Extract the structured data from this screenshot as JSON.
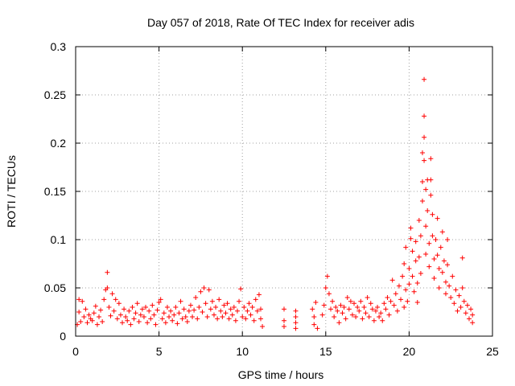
{
  "chart_data": {
    "type": "scatter",
    "title": "Day 057 of 2018, Rate Of TEC Index for receiver adis",
    "xlabel": "GPS time / hours",
    "ylabel": "ROTI / TECUs",
    "xlim": [
      0,
      25
    ],
    "ylim": [
      0,
      0.3
    ],
    "xticks": [
      0,
      5,
      10,
      15,
      20,
      25
    ],
    "xtick_labels": [
      "0",
      "5",
      "10",
      "15",
      "20",
      "25"
    ],
    "yticks": [
      0,
      0.05,
      0.1,
      0.15,
      0.2,
      0.25,
      0.3
    ],
    "ytick_labels": [
      "0",
      "0.05",
      "0.1",
      "0.15",
      "0.2",
      "0.25",
      "0.3"
    ],
    "grid": true,
    "marker": "+",
    "color": "#ff0000",
    "series": [
      {
        "name": "ROTI",
        "points": [
          [
            0.1,
            0.012
          ],
          [
            0.2,
            0.025
          ],
          [
            0.2,
            0.038
          ],
          [
            0.3,
            0.015
          ],
          [
            0.4,
            0.036
          ],
          [
            0.5,
            0.02
          ],
          [
            0.6,
            0.028
          ],
          [
            0.7,
            0.014
          ],
          [
            0.8,
            0.022
          ],
          [
            0.9,
            0.018
          ],
          [
            1.0,
            0.016
          ],
          [
            1.1,
            0.024
          ],
          [
            1.2,
            0.031
          ],
          [
            1.3,
            0.012
          ],
          [
            1.4,
            0.02
          ],
          [
            1.5,
            0.027
          ],
          [
            1.6,
            0.015
          ],
          [
            1.7,
            0.038
          ],
          [
            1.8,
            0.048
          ],
          [
            1.9,
            0.066
          ],
          [
            1.9,
            0.05
          ],
          [
            2.0,
            0.03
          ],
          [
            2.1,
            0.021
          ],
          [
            2.2,
            0.044
          ],
          [
            2.3,
            0.026
          ],
          [
            2.4,
            0.038
          ],
          [
            2.5,
            0.018
          ],
          [
            2.6,
            0.034
          ],
          [
            2.7,
            0.022
          ],
          [
            2.8,
            0.014
          ],
          [
            2.9,
            0.028
          ],
          [
            3.0,
            0.02
          ],
          [
            3.1,
            0.016
          ],
          [
            3.2,
            0.026
          ],
          [
            3.3,
            0.012
          ],
          [
            3.4,
            0.03
          ],
          [
            3.5,
            0.018
          ],
          [
            3.6,
            0.024
          ],
          [
            3.7,
            0.034
          ],
          [
            3.8,
            0.015
          ],
          [
            3.9,
            0.022
          ],
          [
            4.0,
            0.028
          ],
          [
            4.1,
            0.02
          ],
          [
            4.2,
            0.03
          ],
          [
            4.3,
            0.014
          ],
          [
            4.4,
            0.026
          ],
          [
            4.5,
            0.018
          ],
          [
            4.6,
            0.032
          ],
          [
            4.7,
            0.022
          ],
          [
            4.8,
            0.012
          ],
          [
            4.9,
            0.027
          ],
          [
            5.0,
            0.035
          ],
          [
            5.1,
            0.038
          ],
          [
            5.2,
            0.018
          ],
          [
            5.3,
            0.024
          ],
          [
            5.4,
            0.014
          ],
          [
            5.5,
            0.03
          ],
          [
            5.6,
            0.02
          ],
          [
            5.7,
            0.026
          ],
          [
            5.8,
            0.016
          ],
          [
            5.9,
            0.022
          ],
          [
            6.0,
            0.03
          ],
          [
            6.1,
            0.013
          ],
          [
            6.2,
            0.024
          ],
          [
            6.3,
            0.036
          ],
          [
            6.4,
            0.018
          ],
          [
            6.5,
            0.028
          ],
          [
            6.6,
            0.02
          ],
          [
            6.7,
            0.015
          ],
          [
            6.8,
            0.026
          ],
          [
            6.9,
            0.032
          ],
          [
            7.0,
            0.02
          ],
          [
            7.1,
            0.027
          ],
          [
            7.2,
            0.04
          ],
          [
            7.3,
            0.018
          ],
          [
            7.4,
            0.03
          ],
          [
            7.5,
            0.046
          ],
          [
            7.6,
            0.025
          ],
          [
            7.7,
            0.05
          ],
          [
            7.8,
            0.034
          ],
          [
            7.9,
            0.02
          ],
          [
            8.0,
            0.048
          ],
          [
            8.1,
            0.028
          ],
          [
            8.2,
            0.036
          ],
          [
            8.3,
            0.022
          ],
          [
            8.4,
            0.03
          ],
          [
            8.5,
            0.018
          ],
          [
            8.6,
            0.038
          ],
          [
            8.7,
            0.026
          ],
          [
            8.8,
            0.02
          ],
          [
            8.9,
            0.032
          ],
          [
            9.0,
            0.024
          ],
          [
            9.1,
            0.034
          ],
          [
            9.2,
            0.018
          ],
          [
            9.3,
            0.028
          ],
          [
            9.4,
            0.022
          ],
          [
            9.5,
            0.03
          ],
          [
            9.6,
            0.016
          ],
          [
            9.7,
            0.026
          ],
          [
            9.8,
            0.036
          ],
          [
            9.9,
            0.049
          ],
          [
            10.0,
            0.02
          ],
          [
            10.1,
            0.03
          ],
          [
            10.2,
            0.018
          ],
          [
            10.3,
            0.026
          ],
          [
            10.4,
            0.034
          ],
          [
            10.5,
            0.022
          ],
          [
            10.6,
            0.03
          ],
          [
            10.7,
            0.016
          ],
          [
            10.8,
            0.038
          ],
          [
            10.9,
            0.026
          ],
          [
            11.0,
            0.043
          ],
          [
            11.1,
            0.018
          ],
          [
            11.1,
            0.028
          ],
          [
            11.2,
            0.01
          ],
          [
            12.5,
            0.028
          ],
          [
            12.5,
            0.016
          ],
          [
            12.5,
            0.01
          ],
          [
            13.2,
            0.026
          ],
          [
            13.2,
            0.02
          ],
          [
            13.2,
            0.014
          ],
          [
            13.2,
            0.008
          ],
          [
            14.2,
            0.028
          ],
          [
            14.3,
            0.02
          ],
          [
            14.3,
            0.012
          ],
          [
            14.4,
            0.035
          ],
          [
            14.5,
            0.008
          ],
          [
            14.8,
            0.022
          ],
          [
            14.9,
            0.032
          ],
          [
            15.0,
            0.05
          ],
          [
            15.1,
            0.062
          ],
          [
            15.2,
            0.044
          ],
          [
            15.3,
            0.028
          ],
          [
            15.4,
            0.036
          ],
          [
            15.5,
            0.02
          ],
          [
            15.6,
            0.03
          ],
          [
            15.7,
            0.026
          ],
          [
            15.8,
            0.014
          ],
          [
            15.9,
            0.032
          ],
          [
            16.0,
            0.024
          ],
          [
            16.1,
            0.03
          ],
          [
            16.2,
            0.018
          ],
          [
            16.3,
            0.04
          ],
          [
            16.4,
            0.028
          ],
          [
            16.5,
            0.036
          ],
          [
            16.6,
            0.022
          ],
          [
            16.7,
            0.034
          ],
          [
            16.8,
            0.02
          ],
          [
            16.9,
            0.03
          ],
          [
            17.0,
            0.026
          ],
          [
            17.1,
            0.036
          ],
          [
            17.2,
            0.018
          ],
          [
            17.3,
            0.03
          ],
          [
            17.4,
            0.024
          ],
          [
            17.5,
            0.04
          ],
          [
            17.6,
            0.02
          ],
          [
            17.7,
            0.034
          ],
          [
            17.8,
            0.028
          ],
          [
            17.9,
            0.016
          ],
          [
            18.0,
            0.026
          ],
          [
            18.1,
            0.03
          ],
          [
            18.2,
            0.02
          ],
          [
            18.3,
            0.024
          ],
          [
            18.4,
            0.016
          ],
          [
            18.5,
            0.034
          ],
          [
            18.6,
            0.028
          ],
          [
            18.7,
            0.04
          ],
          [
            18.8,
            0.022
          ],
          [
            18.9,
            0.036
          ],
          [
            19.0,
            0.058
          ],
          [
            19.1,
            0.032
          ],
          [
            19.2,
            0.044
          ],
          [
            19.3,
            0.026
          ],
          [
            19.4,
            0.052
          ],
          [
            19.5,
            0.038
          ],
          [
            19.6,
            0.062
          ],
          [
            19.7,
            0.03
          ],
          [
            19.7,
            0.075
          ],
          [
            19.8,
            0.048
          ],
          [
            19.8,
            0.092
          ],
          [
            19.9,
            0.036
          ],
          [
            20.0,
            0.07
          ],
          [
            20.0,
            0.054
          ],
          [
            20.1,
            0.101
          ],
          [
            20.1,
            0.112
          ],
          [
            20.2,
            0.088
          ],
          [
            20.2,
            0.062
          ],
          [
            20.3,
            0.046
          ],
          [
            20.4,
            0.078
          ],
          [
            20.4,
            0.098
          ],
          [
            20.5,
            0.055
          ],
          [
            20.5,
            0.035
          ],
          [
            20.6,
            0.12
          ],
          [
            20.6,
            0.082
          ],
          [
            20.7,
            0.104
          ],
          [
            20.7,
            0.065
          ],
          [
            20.8,
            0.14
          ],
          [
            20.8,
            0.16
          ],
          [
            20.8,
            0.19
          ],
          [
            20.9,
            0.228
          ],
          [
            20.9,
            0.266
          ],
          [
            20.9,
            0.206
          ],
          [
            20.9,
            0.182
          ],
          [
            21.0,
            0.152
          ],
          [
            21.0,
            0.114
          ],
          [
            21.0,
            0.085
          ],
          [
            21.1,
            0.13
          ],
          [
            21.1,
            0.162
          ],
          [
            21.2,
            0.096
          ],
          [
            21.2,
            0.072
          ],
          [
            21.3,
            0.184
          ],
          [
            21.3,
            0.162
          ],
          [
            21.3,
            0.146
          ],
          [
            21.4,
            0.126
          ],
          [
            21.4,
            0.104
          ],
          [
            21.5,
            0.08
          ],
          [
            21.5,
            0.06
          ],
          [
            21.6,
            0.1
          ],
          [
            21.7,
            0.122
          ],
          [
            21.7,
            0.084
          ],
          [
            21.8,
            0.07
          ],
          [
            21.8,
            0.05
          ],
          [
            21.9,
            0.092
          ],
          [
            22.0,
            0.108
          ],
          [
            22.0,
            0.066
          ],
          [
            22.1,
            0.078
          ],
          [
            22.2,
            0.056
          ],
          [
            22.2,
            0.044
          ],
          [
            22.3,
            0.1
          ],
          [
            22.3,
            0.074
          ],
          [
            22.4,
            0.052
          ],
          [
            22.5,
            0.04
          ],
          [
            22.6,
            0.062
          ],
          [
            22.7,
            0.034
          ],
          [
            22.8,
            0.048
          ],
          [
            22.9,
            0.026
          ],
          [
            23.0,
            0.042
          ],
          [
            23.1,
            0.03
          ],
          [
            23.2,
            0.081
          ],
          [
            23.2,
            0.05
          ],
          [
            23.3,
            0.036
          ],
          [
            23.4,
            0.024
          ],
          [
            23.5,
            0.032
          ],
          [
            23.6,
            0.018
          ],
          [
            23.7,
            0.028
          ],
          [
            23.8,
            0.014
          ],
          [
            23.8,
            0.022
          ]
        ]
      }
    ]
  }
}
